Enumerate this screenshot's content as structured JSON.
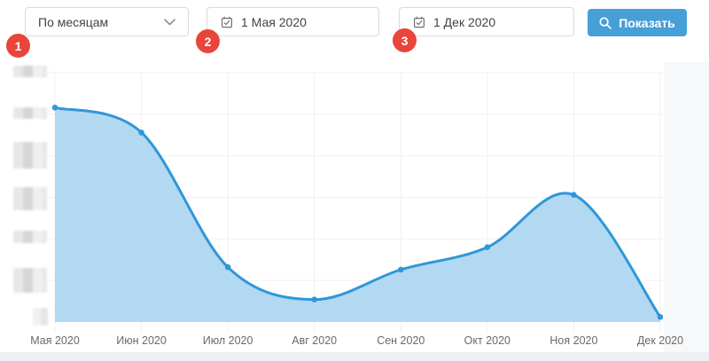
{
  "controls": {
    "period_select": {
      "value": "По месяцам"
    },
    "date_from": {
      "value": "1 Мая 2020"
    },
    "date_to": {
      "value": "1 Дек 2020"
    },
    "show_button": {
      "label": "Показать"
    }
  },
  "step_badges": [
    "1",
    "2",
    "3"
  ],
  "colors": {
    "accent": "#479fd8",
    "badge": "#e9453a",
    "chart_line": "#2f97d9",
    "chart_fill": "#b3d8f2",
    "grid": "#f0f0f0"
  },
  "chart_data": {
    "type": "area",
    "title": "",
    "xlabel": "",
    "ylabel": "",
    "categories": [
      "Мая 2020",
      "Июн 2020",
      "Июл 2020",
      "Авг 2020",
      "Сен 2020",
      "Окт 2020",
      "Ноя 2020",
      "Дек 2020"
    ],
    "values": [
      86,
      76,
      22,
      9,
      21,
      30,
      51,
      2
    ],
    "ylim": [
      0,
      100
    ],
    "y_axis_note": "y-axis tick labels are blurred/redacted in source; values are relative % of plot height",
    "grid": true,
    "legend": false,
    "smooth": true,
    "points_visible": true
  }
}
